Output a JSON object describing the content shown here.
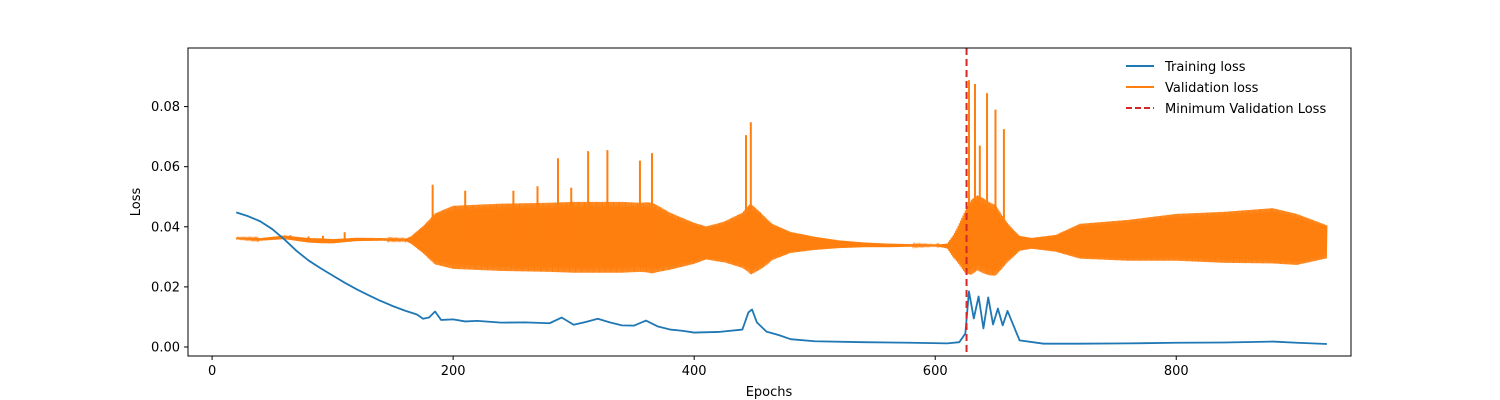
{
  "chart_data": {
    "type": "line",
    "title": "",
    "xlabel": "Epochs",
    "ylabel": "Loss",
    "xlim": [
      -20,
      945
    ],
    "ylim": [
      -0.003,
      0.0995
    ],
    "x_ticks": [
      0,
      200,
      400,
      600,
      800
    ],
    "x_tick_labels": [
      "0",
      "200",
      "400",
      "600",
      "800"
    ],
    "y_ticks": [
      0.0,
      0.02,
      0.04,
      0.06,
      0.08
    ],
    "y_tick_labels": [
      "0.00",
      "0.02",
      "0.04",
      "0.06",
      "0.08"
    ],
    "grid": false,
    "legend_position": "top-right",
    "colors": {
      "training": "#1f77b4",
      "validation": "#ff7f0e",
      "minimum": "#d62728"
    },
    "series": [
      {
        "name": "Training loss",
        "color": "#1f77b4",
        "x": [
          20,
          30,
          40,
          50,
          60,
          70,
          80,
          90,
          100,
          110,
          120,
          130,
          140,
          150,
          160,
          170,
          175,
          180,
          185,
          190,
          200,
          210,
          220,
          240,
          260,
          280,
          290,
          300,
          310,
          320,
          330,
          340,
          350,
          360,
          370,
          380,
          390,
          400,
          420,
          440,
          445,
          448,
          452,
          460,
          470,
          480,
          500,
          540,
          580,
          610,
          620,
          625,
          628,
          632,
          636,
          640,
          644,
          648,
          652,
          656,
          660,
          670,
          690,
          720,
          760,
          800,
          840,
          880,
          900,
          925
        ],
        "y": [
          0.0448,
          0.0435,
          0.0418,
          0.0392,
          0.0358,
          0.032,
          0.0288,
          0.0262,
          0.0238,
          0.0214,
          0.0192,
          0.0172,
          0.0153,
          0.0136,
          0.0121,
          0.0108,
          0.0094,
          0.0098,
          0.0118,
          0.009,
          0.0092,
          0.0085,
          0.0087,
          0.0081,
          0.0082,
          0.0079,
          0.0098,
          0.0074,
          0.0083,
          0.0094,
          0.0082,
          0.0072,
          0.0071,
          0.0088,
          0.0068,
          0.0058,
          0.0054,
          0.0048,
          0.005,
          0.0058,
          0.0115,
          0.0125,
          0.0082,
          0.0051,
          0.004,
          0.0026,
          0.0019,
          0.0016,
          0.0014,
          0.0012,
          0.0016,
          0.0045,
          0.0185,
          0.0095,
          0.0168,
          0.0062,
          0.0165,
          0.0075,
          0.0128,
          0.0072,
          0.012,
          0.0022,
          0.0011,
          0.0011,
          0.0012,
          0.0014,
          0.0015,
          0.0018,
          0.0014,
          0.001
        ]
      },
      {
        "name": "Validation loss",
        "color": "#ff7f0e",
        "center_x": [
          20,
          40,
          60,
          80,
          100,
          120,
          140,
          165,
          180,
          200,
          240,
          280,
          300,
          320,
          340,
          360,
          370,
          380,
          400,
          420,
          440,
          445,
          460,
          480,
          500,
          520,
          540,
          560,
          580,
          600,
          615,
          625,
          635,
          645,
          655,
          665,
          700,
          720,
          760,
          800,
          840,
          880,
          900,
          925
        ],
        "center_y": [
          0.0362,
          0.0358,
          0.0365,
          0.0355,
          0.0352,
          0.0358,
          0.0358,
          0.0356,
          0.0358,
          0.0365,
          0.0365,
          0.0365,
          0.0365,
          0.0365,
          0.0365,
          0.0365,
          0.036,
          0.0352,
          0.0345,
          0.0348,
          0.0355,
          0.036,
          0.035,
          0.0348,
          0.0345,
          0.0342,
          0.034,
          0.0338,
          0.0338,
          0.0338,
          0.0335,
          0.035,
          0.038,
          0.036,
          0.035,
          0.0345,
          0.0345,
          0.0352,
          0.0355,
          0.0365,
          0.0365,
          0.037,
          0.0358,
          0.035
        ],
        "amplitude_x": [
          20,
          60,
          90,
          110,
          160,
          165,
          175,
          185,
          200,
          240,
          280,
          300,
          320,
          340,
          355,
          365,
          380,
          395,
          410,
          425,
          440,
          447,
          455,
          465,
          480,
          500,
          520,
          540,
          560,
          580,
          600,
          610,
          618,
          625,
          630,
          640,
          650,
          660,
          670,
          680,
          700,
          720,
          760,
          800,
          840,
          880,
          900,
          925
        ],
        "amplitude_y": [
          0.0002,
          0.0006,
          0.0008,
          0.0006,
          0.0003,
          0.0012,
          0.0045,
          0.0085,
          0.0105,
          0.0112,
          0.0115,
          0.0118,
          0.0118,
          0.0118,
          0.0115,
          0.0118,
          0.0095,
          0.0075,
          0.0055,
          0.0068,
          0.0092,
          0.0118,
          0.0095,
          0.006,
          0.0035,
          0.0022,
          0.0013,
          0.0008,
          0.0006,
          0.0004,
          0.0002,
          0.0008,
          0.0055,
          0.0105,
          0.0125,
          0.0125,
          0.0118,
          0.0065,
          0.0025,
          0.0018,
          0.0028,
          0.0058,
          0.0068,
          0.0078,
          0.0085,
          0.0092,
          0.0085,
          0.0055
        ]
      }
    ],
    "spikes": [
      {
        "x": 65,
        "y": 0.0372,
        "series": "Validation loss"
      },
      {
        "x": 80,
        "y": 0.0368,
        "series": "Validation loss"
      },
      {
        "x": 92,
        "y": 0.037,
        "series": "Validation loss"
      },
      {
        "x": 110,
        "y": 0.0382,
        "series": "Validation loss"
      },
      {
        "x": 183,
        "y": 0.054,
        "series": "Validation loss"
      },
      {
        "x": 210,
        "y": 0.052,
        "series": "Validation loss"
      },
      {
        "x": 250,
        "y": 0.052,
        "series": "Validation loss"
      },
      {
        "x": 270,
        "y": 0.0535,
        "series": "Validation loss"
      },
      {
        "x": 287,
        "y": 0.0628,
        "series": "Validation loss"
      },
      {
        "x": 298,
        "y": 0.053,
        "series": "Validation loss"
      },
      {
        "x": 312,
        "y": 0.0652,
        "series": "Validation loss"
      },
      {
        "x": 328,
        "y": 0.0655,
        "series": "Validation loss"
      },
      {
        "x": 355,
        "y": 0.062,
        "series": "Validation loss"
      },
      {
        "x": 365,
        "y": 0.0645,
        "series": "Validation loss"
      },
      {
        "x": 443,
        "y": 0.0705,
        "series": "Validation loss"
      },
      {
        "x": 447,
        "y": 0.0748,
        "series": "Validation loss"
      },
      {
        "x": 628,
        "y": 0.0888,
        "series": "Validation loss"
      },
      {
        "x": 633,
        "y": 0.0875,
        "series": "Validation loss"
      },
      {
        "x": 637,
        "y": 0.067,
        "series": "Validation loss"
      },
      {
        "x": 643,
        "y": 0.0845,
        "series": "Validation loss"
      },
      {
        "x": 650,
        "y": 0.079,
        "series": "Validation loss"
      },
      {
        "x": 657,
        "y": 0.0725,
        "series": "Validation loss"
      }
    ],
    "vlines": [
      {
        "name": "Minimum Validation Loss",
        "x": 626,
        "color": "#d62728",
        "style": "dashed"
      }
    ],
    "legend": [
      {
        "label": "Training loss",
        "color": "#1f77b4",
        "style": "solid"
      },
      {
        "label": "Validation loss",
        "color": "#ff7f0e",
        "style": "solid"
      },
      {
        "label": "Minimum Validation Loss",
        "color": "#d62728",
        "style": "dashed"
      }
    ]
  }
}
